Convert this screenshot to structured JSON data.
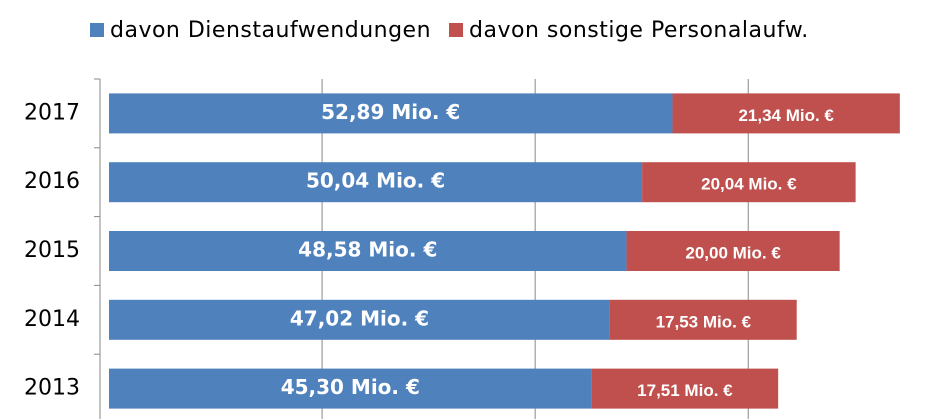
{
  "chart_data": {
    "type": "stacked-barh",
    "categories": [
      "2017",
      "2016",
      "2015",
      "2014",
      "2013"
    ],
    "series": [
      {
        "name": "davon Dienstaufwendungen",
        "color": "#4f81bd",
        "values": [
          52.89,
          50.04,
          48.58,
          47.02,
          45.3
        ],
        "value_labels": [
          "52,89 Mio. €",
          "50,04 Mio. €",
          "48,58 Mio. €",
          "47,02 Mio. €",
          "45,30 Mio. €"
        ]
      },
      {
        "name": "davon sonstige Personalaufw.",
        "color": "#c0504d",
        "values": [
          21.34,
          20.04,
          20.0,
          17.53,
          17.51
        ],
        "value_labels": [
          "21,34 Mio. €",
          "20,04 Mio. €",
          "20,00 Mio. €",
          "17,53 Mio. €",
          "17,51 Mio. €"
        ]
      }
    ],
    "xlim": [
      0,
      78
    ],
    "xticks": [
      0,
      20,
      40,
      60
    ],
    "grid": true
  }
}
